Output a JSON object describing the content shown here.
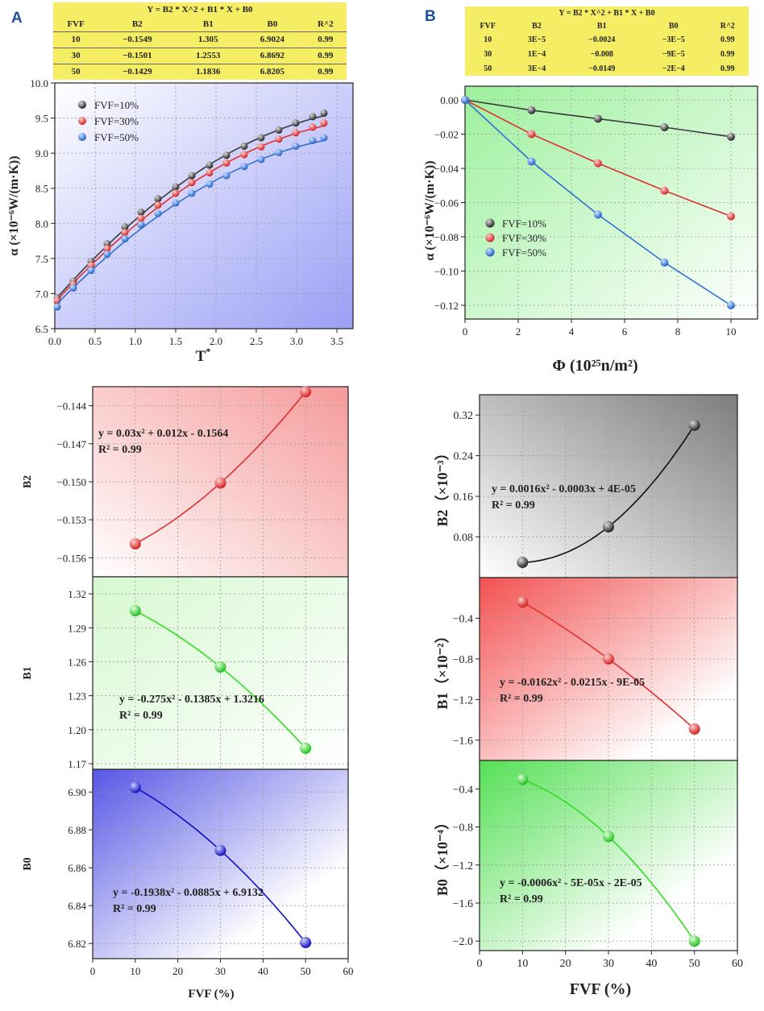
{
  "panels": {
    "a": {
      "letter": "A",
      "table": {
        "title": "Y = B2 * X^2 + B1 * X + B0",
        "headers": [
          "FVF",
          "B2",
          "B1",
          "B0",
          "R^2"
        ],
        "rows": [
          [
            "10",
            "−0.1549",
            "1.305",
            "6.9024",
            "0.99"
          ],
          [
            "30",
            "−0.1501",
            "1.2553",
            "6.8692",
            "0.99"
          ],
          [
            "50",
            "−0.1429",
            "1.1836",
            "6.8205",
            "0.99"
          ]
        ]
      }
    },
    "b": {
      "letter": "B",
      "table": {
        "title": "Y = B2 * X^2 + B1 * X + B0",
        "headers": [
          "FVF",
          "B2",
          "B1",
          "B0",
          "R^2"
        ],
        "rows": [
          [
            "10",
            "3E−5",
            "−0.0024",
            "−3E−5",
            "0.99"
          ],
          [
            "30",
            "1E−4",
            "−0.008",
            "−9E−5",
            "0.99"
          ],
          [
            "50",
            "3E−4",
            "−0.0149",
            "−2E−4",
            "0.99"
          ]
        ]
      }
    }
  },
  "colors": {
    "black_series": "#3a3a3a",
    "red_series": "#e03030",
    "blue_series": "#2f6fd0",
    "blue_fit": "#1010c0",
    "green_fit": "#33dd22",
    "table_bg": "#f5ee64"
  },
  "chart_data": [
    {
      "id": "a_top",
      "type": "line",
      "xlabel": "T",
      "xlabel_sup": "*",
      "ylabel": "α (×10⁻⁶W/(m·K))",
      "xlim": [
        0,
        3.7
      ],
      "ylim": [
        6.5,
        10.0
      ],
      "xticks": [
        0.0,
        0.5,
        1.0,
        1.5,
        2.0,
        2.5,
        3.0,
        3.5
      ],
      "xtick_labels": [
        "0.0",
        "0.5",
        "1.0",
        "1.5",
        "2.0",
        "2.5",
        "3.0",
        "3.5"
      ],
      "yticks": [
        6.5,
        7.0,
        7.5,
        8.0,
        8.5,
        9.0,
        9.5,
        10.0
      ],
      "ytick_labels": [
        "6.5",
        "7.0",
        "7.5",
        "8.0",
        "8.5",
        "9.0",
        "9.5",
        "10.0"
      ],
      "grid": true,
      "legend_position": "top-left",
      "x": [
        0.03,
        0.23,
        0.45,
        0.65,
        0.87,
        1.07,
        1.28,
        1.5,
        1.7,
        1.92,
        2.13,
        2.35,
        2.56,
        2.78,
        2.99,
        3.2,
        3.34
      ],
      "series": [
        {
          "name": "FVF=10%",
          "color": "#3a3a3a",
          "values": [
            6.94,
            7.18,
            7.46,
            7.71,
            7.95,
            8.16,
            8.35,
            8.52,
            8.68,
            8.83,
            8.97,
            9.1,
            9.22,
            9.33,
            9.43,
            9.52,
            9.57
          ],
          "fit": [
            -0.1549,
            1.305,
            6.9024
          ]
        },
        {
          "name": "FVF=30%",
          "color": "#e03030",
          "values": [
            6.9,
            7.13,
            7.4,
            7.64,
            7.87,
            8.07,
            8.26,
            8.43,
            8.58,
            8.72,
            8.86,
            8.98,
            9.09,
            9.2,
            9.29,
            9.37,
            9.43
          ],
          "fit": [
            -0.1501,
            1.2553,
            6.8692
          ]
        },
        {
          "name": "FVF=50%",
          "color": "#2f6fd0",
          "values": [
            6.81,
            7.08,
            7.33,
            7.56,
            7.78,
            7.98,
            8.14,
            8.29,
            8.43,
            8.56,
            8.68,
            8.81,
            8.91,
            9.01,
            9.1,
            9.18,
            9.22
          ],
          "fit": [
            -0.1429,
            1.1836,
            6.8205
          ]
        }
      ]
    },
    {
      "id": "b_top",
      "type": "line",
      "xlabel": "Φ (10²⁵n/m²)",
      "ylabel": "α (×10⁻⁶W/(m·K))",
      "xlim": [
        0,
        11
      ],
      "ylim": [
        -0.128,
        0.008
      ],
      "xticks": [
        0,
        2,
        4,
        6,
        8,
        10
      ],
      "xtick_labels": [
        "0",
        "2",
        "4",
        "6",
        "8",
        "10"
      ],
      "yticks": [
        0.0,
        -0.02,
        -0.04,
        -0.06,
        -0.08,
        -0.1,
        -0.12
      ],
      "ytick_labels": [
        "0.00",
        "−0.02",
        "−0.04",
        "−0.06",
        "−0.08",
        "−0.10",
        "−0.12"
      ],
      "grid": true,
      "legend_position": "middle-left",
      "x": [
        0,
        2.5,
        5,
        7.5,
        10
      ],
      "series": [
        {
          "name": "FVF=10%",
          "color": "#3a3a3a",
          "values": [
            0.0,
            -0.006,
            -0.011,
            -0.016,
            -0.0215
          ]
        },
        {
          "name": "FVF=30%",
          "color": "#e03030",
          "values": [
            0.0,
            -0.02,
            -0.037,
            -0.053,
            -0.068
          ]
        },
        {
          "name": "FVF=50%",
          "color": "#2f6fd0",
          "values": [
            0.0,
            -0.036,
            -0.067,
            -0.095,
            -0.12
          ]
        }
      ]
    },
    {
      "id": "a_b2",
      "type": "scatter",
      "ylabel": "B2",
      "xlim": [
        0,
        60
      ],
      "ylim": [
        -0.1575,
        -0.1425
      ],
      "yticks": [
        -0.156,
        -0.153,
        -0.15,
        -0.147,
        -0.144
      ],
      "ytick_labels": [
        "−0.156",
        "−0.153",
        "−0.150",
        "−0.147",
        "−0.144"
      ],
      "x": [
        10,
        30,
        50
      ],
      "values": [
        -0.1549,
        -0.1501,
        -0.1429
      ],
      "color": "#e03030",
      "equation": "y = 0.03x² + 0.012x - 0.1564",
      "r2": "R² = 0.99"
    },
    {
      "id": "a_b1",
      "type": "scatter",
      "ylabel": "B1",
      "xlim": [
        0,
        60
      ],
      "ylim": [
        1.165,
        1.335
      ],
      "yticks": [
        1.17,
        1.2,
        1.23,
        1.26,
        1.29,
        1.32
      ],
      "ytick_labels": [
        "1.17",
        "1.20",
        "1.23",
        "1.26",
        "1.29",
        "1.32"
      ],
      "x": [
        10,
        30,
        50
      ],
      "values": [
        1.305,
        1.2553,
        1.1836
      ],
      "color": "#33dd22",
      "equation": "y = -0.275x² - 0.1385x + 1.3216",
      "r2": "R² = 0.99"
    },
    {
      "id": "a_b0",
      "type": "scatter",
      "ylabel": "B0",
      "xlabel": "FVF (%)",
      "xlim": [
        0,
        60
      ],
      "ylim": [
        6.812,
        6.912
      ],
      "xticks": [
        0,
        10,
        20,
        30,
        40,
        50,
        60
      ],
      "xtick_labels": [
        "0",
        "10",
        "20",
        "30",
        "40",
        "50",
        "60"
      ],
      "yticks": [
        6.82,
        6.84,
        6.86,
        6.88,
        6.9
      ],
      "ytick_labels": [
        "6.82",
        "6.84",
        "6.86",
        "6.88",
        "6.90"
      ],
      "x": [
        10,
        30,
        50
      ],
      "values": [
        6.9024,
        6.8692,
        6.8205
      ],
      "color": "#1010c0",
      "equation": "y = -0.1938x² - 0.0885x + 6.9132",
      "r2": "R² = 0.99"
    },
    {
      "id": "b_b2",
      "type": "scatter",
      "ylabel": "B2（×10⁻³）",
      "xlim": [
        0,
        60
      ],
      "ylim": [
        0,
        0.36
      ],
      "yticks": [
        0.08,
        0.16,
        0.24,
        0.32
      ],
      "ytick_labels": [
        "0.08",
        "0.16",
        "0.24",
        "0.32"
      ],
      "x": [
        10,
        30,
        50
      ],
      "values": [
        0.03,
        0.1,
        0.3
      ],
      "color": "#111111",
      "equation": "y = 0.0016x² - 0.0003x + 4E-05",
      "r2": "R² = 0.99"
    },
    {
      "id": "b_b1",
      "type": "scatter",
      "ylabel": "B1（×10⁻²）",
      "xlim": [
        0,
        60
      ],
      "ylim": [
        -1.8,
        0.0
      ],
      "yticks": [
        -1.6,
        -1.2,
        -0.8,
        -0.4
      ],
      "ytick_labels": [
        "−1.6",
        "−1.2",
        "−0.8",
        "−0.4"
      ],
      "x": [
        10,
        30,
        50
      ],
      "values": [
        -0.24,
        -0.8,
        -1.49
      ],
      "color": "#e03030",
      "equation": "y = -0.0162x² - 0.0215x - 9E-05",
      "r2": "R² = 0.99"
    },
    {
      "id": "b_b0",
      "type": "scatter",
      "ylabel": "B0（×10⁻⁴）",
      "xlabel": "FVF (%)",
      "xlim": [
        0,
        60
      ],
      "ylim": [
        -2.1,
        -0.1
      ],
      "xticks": [
        0,
        10,
        20,
        30,
        40,
        50,
        60
      ],
      "xtick_labels": [
        "0",
        "10",
        "20",
        "30",
        "40",
        "50",
        "60"
      ],
      "yticks": [
        -2.0,
        -1.6,
        -1.2,
        -0.8,
        -0.4
      ],
      "ytick_labels": [
        "−2.0",
        "−1.6",
        "−1.2",
        "−0.8",
        "−0.4"
      ],
      "x": [
        10,
        30,
        50
      ],
      "values": [
        -0.3,
        -0.9,
        -2.0
      ],
      "color": "#33dd22",
      "equation": "y = -0.0006x² - 5E-05x - 2E-05",
      "r2": "R² = 0.99"
    }
  ]
}
